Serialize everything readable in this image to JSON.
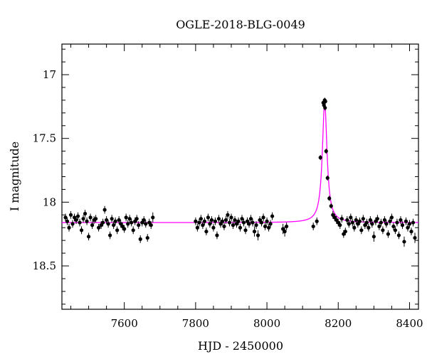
{
  "chart_data": {
    "type": "scatter",
    "title": "OGLE-2018-BLG-0049",
    "xlabel": "HJD - 2450000",
    "ylabel": "I magnitude",
    "xlim": [
      7425,
      8425
    ],
    "ylim": [
      18.84,
      16.76
    ],
    "y_inverted": true,
    "grid": false,
    "x_ticks": [
      7600,
      7800,
      8000,
      8200,
      8400
    ],
    "y_ticks": [
      17,
      17.5,
      18,
      18.5
    ],
    "x_tick_labels": [
      "7600",
      "7800",
      "8000",
      "8200",
      "8400"
    ],
    "y_tick_labels": [
      "17",
      "17.5",
      "18",
      "18.5"
    ],
    "colors": {
      "data": "#000000",
      "model": "#ff00ff"
    },
    "model": {
      "baseline": 18.16,
      "t0": 8162,
      "peak": 17.22,
      "tE": 8
    },
    "series": [
      {
        "kind": "points",
        "x": [
          7435,
          7440,
          7445,
          7450,
          7455,
          7460,
          7465,
          7470,
          7475,
          7480,
          7485,
          7490,
          7495,
          7500,
          7505,
          7510,
          7515,
          7520,
          7528,
          7535,
          7540,
          7545,
          7550,
          7555,
          7560,
          7565,
          7570,
          7575,
          7580,
          7585,
          7590,
          7595,
          7600,
          7605,
          7610,
          7615,
          7620,
          7625,
          7630,
          7635,
          7640,
          7645,
          7650,
          7655,
          7660,
          7665,
          7670,
          7675,
          7680,
          7800,
          7805,
          7810,
          7815,
          7820,
          7825,
          7830,
          7835,
          7840,
          7845,
          7850,
          7855,
          7860,
          7865,
          7870,
          7875,
          7880,
          7885,
          7890,
          7895,
          7900,
          7905,
          7910,
          7915,
          7920,
          7925,
          7930,
          7935,
          7940,
          7945,
          7950,
          7955,
          7960,
          7965,
          7970,
          7975,
          7980,
          7985,
          7990,
          7995,
          8000,
          8005,
          8010,
          8015,
          8045,
          8050,
          8055,
          8130,
          8140,
          8150,
          8158,
          8160,
          8162,
          8163,
          8164,
          8166,
          8170,
          8175,
          8180,
          8185,
          8190,
          8195,
          8200,
          8205,
          8210,
          8215,
          8220,
          8225,
          8230,
          8235,
          8240,
          8245,
          8250,
          8255,
          8260,
          8265,
          8270,
          8275,
          8280,
          8285,
          8290,
          8295,
          8300,
          8305,
          8310,
          8315,
          8320,
          8325,
          8330,
          8335,
          8340,
          8345,
          8350,
          8355,
          8360,
          8365,
          8370,
          8375,
          8380,
          8385,
          8390,
          8395,
          8400,
          8405,
          8410,
          8415
        ],
        "y": [
          18.12,
          18.15,
          18.2,
          18.1,
          18.17,
          18.12,
          18.14,
          18.11,
          18.16,
          18.22,
          18.13,
          18.09,
          18.15,
          18.27,
          18.12,
          18.18,
          18.14,
          18.13,
          18.2,
          18.18,
          18.16,
          18.06,
          18.14,
          18.17,
          18.26,
          18.13,
          18.18,
          18.15,
          18.22,
          18.14,
          18.17,
          18.19,
          18.21,
          18.12,
          18.17,
          18.13,
          18.16,
          18.22,
          18.15,
          18.13,
          18.18,
          18.29,
          18.16,
          18.14,
          18.17,
          18.28,
          18.16,
          18.18,
          18.12,
          18.15,
          18.2,
          18.16,
          18.13,
          18.18,
          18.15,
          18.23,
          18.12,
          18.17,
          18.14,
          18.2,
          18.15,
          18.26,
          18.13,
          18.17,
          18.15,
          18.19,
          18.14,
          18.1,
          18.16,
          18.12,
          18.18,
          18.14,
          18.17,
          18.15,
          18.2,
          18.13,
          18.16,
          18.22,
          18.15,
          18.17,
          18.13,
          18.16,
          18.23,
          18.18,
          18.26,
          18.14,
          18.16,
          18.12,
          18.19,
          18.15,
          18.2,
          18.17,
          18.11,
          18.21,
          18.23,
          18.19,
          18.19,
          18.15,
          17.65,
          17.22,
          17.24,
          17.2,
          17.26,
          17.21,
          17.6,
          17.81,
          17.97,
          18.03,
          18.1,
          18.12,
          18.14,
          18.16,
          18.18,
          18.13,
          18.25,
          18.23,
          18.14,
          18.17,
          18.12,
          18.16,
          18.2,
          18.14,
          18.17,
          18.15,
          18.22,
          18.13,
          18.18,
          18.16,
          18.2,
          18.14,
          18.17,
          18.27,
          18.15,
          18.13,
          18.19,
          18.16,
          18.22,
          18.14,
          18.17,
          18.25,
          18.15,
          18.12,
          18.19,
          18.22,
          18.16,
          18.26,
          18.14,
          18.18,
          18.31,
          18.15,
          18.2,
          18.17,
          18.23,
          18.16,
          18.28
        ],
        "err": [
          0.03,
          0.03,
          0.03,
          0.03,
          0.03,
          0.03,
          0.03,
          0.03,
          0.03,
          0.03,
          0.03,
          0.03,
          0.03,
          0.03,
          0.03,
          0.03,
          0.03,
          0.03,
          0.03,
          0.03,
          0.03,
          0.03,
          0.03,
          0.03,
          0.03,
          0.03,
          0.03,
          0.03,
          0.03,
          0.03,
          0.03,
          0.03,
          0.03,
          0.03,
          0.03,
          0.03,
          0.03,
          0.03,
          0.03,
          0.03,
          0.03,
          0.03,
          0.03,
          0.03,
          0.03,
          0.03,
          0.03,
          0.03,
          0.04,
          0.03,
          0.03,
          0.03,
          0.03,
          0.03,
          0.03,
          0.03,
          0.03,
          0.03,
          0.03,
          0.03,
          0.03,
          0.03,
          0.03,
          0.03,
          0.03,
          0.03,
          0.03,
          0.03,
          0.03,
          0.03,
          0.03,
          0.03,
          0.03,
          0.03,
          0.03,
          0.03,
          0.03,
          0.03,
          0.03,
          0.03,
          0.03,
          0.03,
          0.04,
          0.03,
          0.04,
          0.03,
          0.03,
          0.03,
          0.03,
          0.03,
          0.03,
          0.03,
          0.03,
          0.04,
          0.04,
          0.03,
          0.03,
          0.03,
          0.02,
          0.02,
          0.02,
          0.02,
          0.02,
          0.02,
          0.02,
          0.02,
          0.02,
          0.02,
          0.03,
          0.03,
          0.03,
          0.03,
          0.03,
          0.03,
          0.03,
          0.03,
          0.03,
          0.03,
          0.03,
          0.03,
          0.03,
          0.03,
          0.03,
          0.03,
          0.03,
          0.03,
          0.03,
          0.03,
          0.03,
          0.03,
          0.03,
          0.04,
          0.03,
          0.03,
          0.03,
          0.03,
          0.03,
          0.03,
          0.03,
          0.03,
          0.03,
          0.03,
          0.03,
          0.03,
          0.03,
          0.03,
          0.03,
          0.03,
          0.04,
          0.03,
          0.03,
          0.03,
          0.03,
          0.03,
          0.04
        ]
      },
      {
        "kind": "model-curve"
      }
    ]
  }
}
